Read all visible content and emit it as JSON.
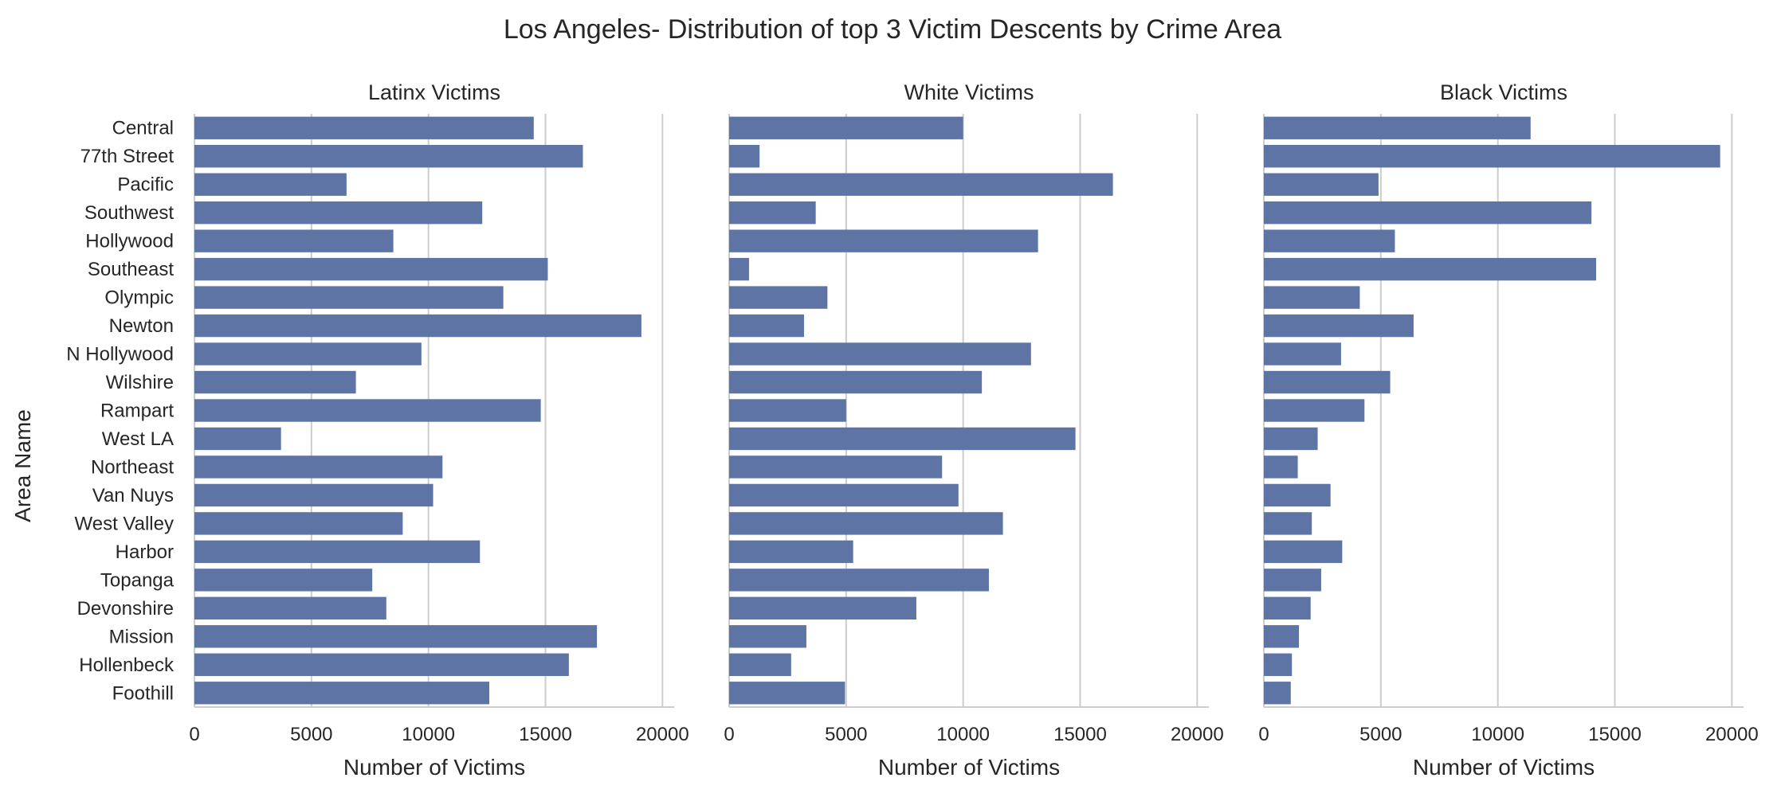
{
  "chart_data": {
    "type": "bar",
    "orientation": "horizontal",
    "title": "Los Angeles- Distribution of top 3 Victim Descents by Crime Area",
    "ylabel": "Area Name",
    "xlabel": "Number of Victims",
    "xlim": [
      0,
      20500
    ],
    "xticks": [
      0,
      5000,
      10000,
      15000,
      20000
    ],
    "grid": "vertical",
    "bar_color": "#5d74a5",
    "categories": [
      "Central",
      "77th Street",
      "Pacific",
      "Southwest",
      "Hollywood",
      "Southeast",
      "Olympic",
      "Newton",
      "N Hollywood",
      "Wilshire",
      "Rampart",
      "West LA",
      "Northeast",
      "Van Nuys",
      "West Valley",
      "Harbor",
      "Topanga",
      "Devonshire",
      "Mission",
      "Hollenbeck",
      "Foothill"
    ],
    "panels": [
      {
        "title": "Latinx Victims",
        "values": [
          14500,
          16600,
          6500,
          12300,
          8500,
          15100,
          13200,
          19100,
          9700,
          6900,
          14800,
          3700,
          10600,
          10200,
          8900,
          12200,
          7600,
          8200,
          17200,
          16000,
          12600
        ]
      },
      {
        "title": "White Victims",
        "values": [
          10000,
          1300,
          16400,
          3700,
          13200,
          850,
          4200,
          3200,
          12900,
          10800,
          5000,
          14800,
          9100,
          9800,
          11700,
          5300,
          11100,
          8000,
          3300,
          2650,
          4950
        ]
      },
      {
        "title": "Black Victims",
        "values": [
          11400,
          19500,
          4900,
          14000,
          5600,
          14200,
          4100,
          6400,
          3300,
          5400,
          4300,
          2300,
          1450,
          2850,
          2050,
          3350,
          2450,
          2000,
          1500,
          1200,
          1150
        ]
      }
    ]
  }
}
